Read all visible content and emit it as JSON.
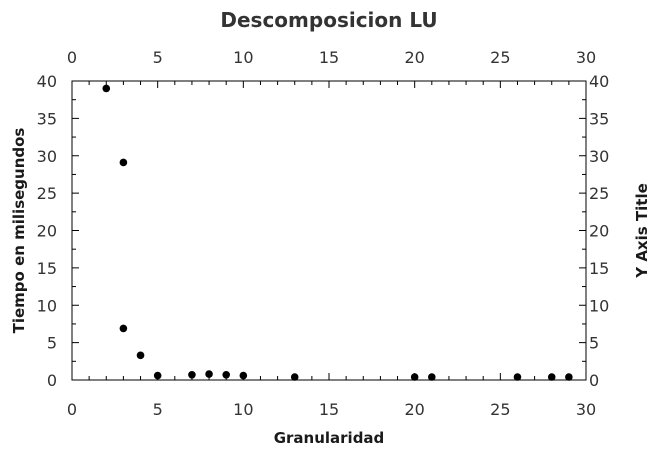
{
  "chart_data": {
    "type": "scatter",
    "title": "Descomposicion LU",
    "xlabel": "Granularidad",
    "ylabel": "Tiempo en milisegundos",
    "ylabel_right": "Y Axis Title",
    "xlim": [
      0,
      30
    ],
    "ylim": [
      0,
      40
    ],
    "x_ticks": [
      0,
      5,
      10,
      15,
      20,
      25,
      30
    ],
    "y_ticks": [
      0,
      5,
      10,
      15,
      20,
      25,
      30,
      35,
      40
    ],
    "grid": false,
    "marker_color": "#000000",
    "series": [
      {
        "points": [
          {
            "x": 2,
            "y": 39
          },
          {
            "x": 3,
            "y": 29.1
          },
          {
            "x": 3,
            "y": 6.9
          },
          {
            "x": 4,
            "y": 3.3
          },
          {
            "x": 5,
            "y": 0.6
          },
          {
            "x": 7,
            "y": 0.7
          },
          {
            "x": 8,
            "y": 0.8
          },
          {
            "x": 9,
            "y": 0.7
          },
          {
            "x": 10,
            "y": 0.6
          },
          {
            "x": 13,
            "y": 0.4
          },
          {
            "x": 20,
            "y": 0.4
          },
          {
            "x": 21,
            "y": 0.4
          },
          {
            "x": 26,
            "y": 0.4
          },
          {
            "x": 28,
            "y": 0.4
          },
          {
            "x": 29,
            "y": 0.4
          }
        ]
      }
    ]
  }
}
